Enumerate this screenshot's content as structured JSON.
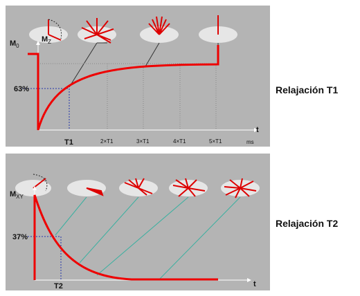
{
  "t1_panel": {
    "label": "Relajación T1",
    "m0": {
      "main": "M",
      "sub": "0"
    },
    "mz": {
      "main": "M",
      "sub": "Z"
    },
    "percent": "63%",
    "ticks": [
      "T1",
      "2×T1",
      "3×T1",
      "4×T1",
      "5×T1"
    ],
    "unit": "ms",
    "axis": "t"
  },
  "t2_panel": {
    "label": "Relajación T2",
    "mxy": {
      "main": "M",
      "sub": "XY"
    },
    "percent": "37%",
    "tick": "T2",
    "axis": "t"
  }
}
